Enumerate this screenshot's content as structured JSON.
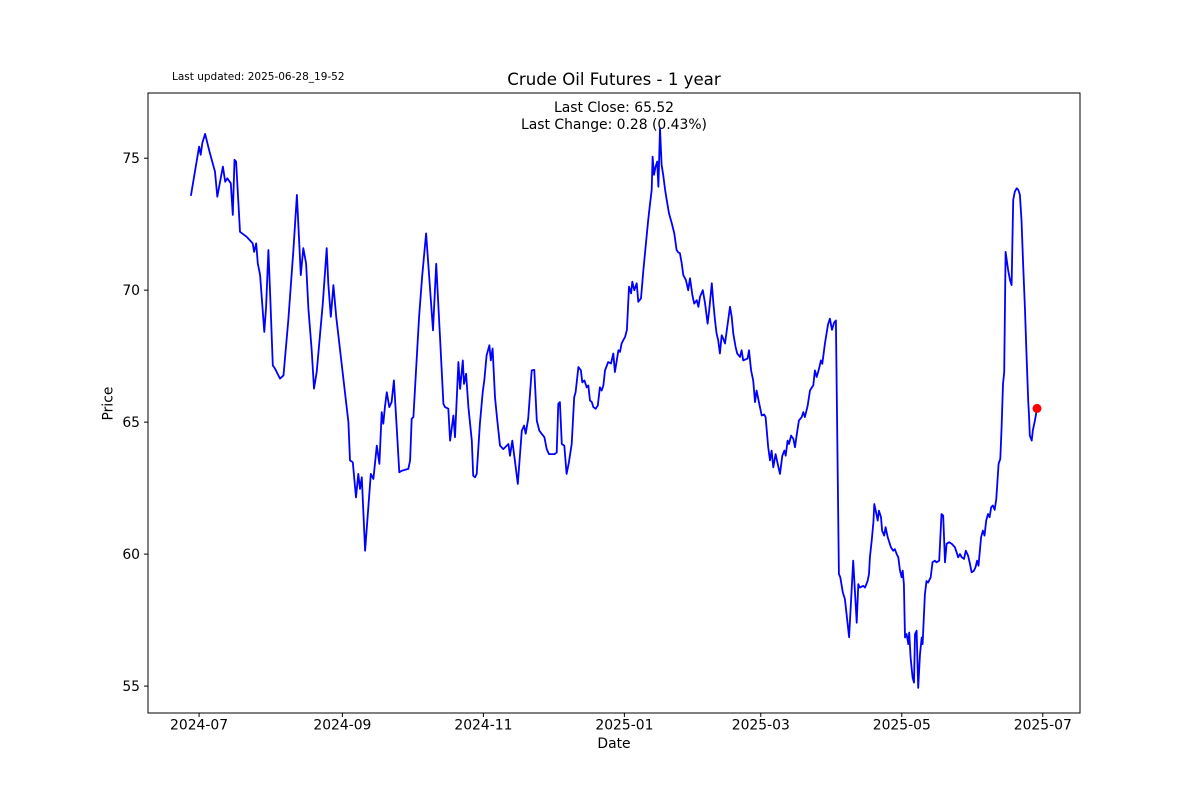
{
  "chart_data": {
    "type": "line",
    "title": "Crude Oil Futures - 1 year",
    "xlabel": "Date",
    "ylabel": "Price",
    "annotations": {
      "last_updated": "Last updated: 2025-06-28_19-52",
      "last_close": "Last Close: 65.52",
      "last_change": "Last Change: 0.28 (0.43%)"
    },
    "last_close_value": 65.52,
    "last_change_value": 0.28,
    "last_change_pct": 0.43,
    "line_color": "#0000ff",
    "marker_color": "#ff0000",
    "grid": false,
    "legend": "none",
    "x_axis": {
      "unit": "days since 2024-07-01",
      "lim": [
        -22.1,
        381.1
      ],
      "ticks": [
        {
          "day": 0,
          "label": "2024-07"
        },
        {
          "day": 62,
          "label": "2024-09"
        },
        {
          "day": 123,
          "label": "2024-11"
        },
        {
          "day": 184,
          "label": "2025-01"
        },
        {
          "day": 243,
          "label": "2025-03"
        },
        {
          "day": 304,
          "label": "2025-05"
        },
        {
          "day": 365,
          "label": "2025-07"
        }
      ]
    },
    "y_axis": {
      "lim": [
        53.98,
        77.47
      ],
      "ticks": [
        55,
        60,
        65,
        70,
        75
      ]
    },
    "last_point": {
      "day": 362.5,
      "price": 65.52
    },
    "points": [
      [
        -3.5,
        73.6
      ],
      [
        0,
        75.44
      ],
      [
        0.7,
        75.13
      ],
      [
        1.4,
        75.57
      ],
      [
        2.6,
        75.92
      ],
      [
        4.5,
        75.25
      ],
      [
        6.9,
        74.49
      ],
      [
        7.9,
        73.54
      ],
      [
        10.3,
        74.68
      ],
      [
        11.3,
        74.11
      ],
      [
        12.2,
        74.24
      ],
      [
        13.7,
        74.05
      ],
      [
        14.6,
        72.85
      ],
      [
        15.3,
        74.94
      ],
      [
        16,
        74.87
      ],
      [
        17.7,
        72.21
      ],
      [
        20.6,
        72.02
      ],
      [
        23.2,
        71.77
      ],
      [
        23.8,
        71.45
      ],
      [
        24.7,
        71.77
      ],
      [
        25.4,
        71.01
      ],
      [
        26.4,
        70.57
      ],
      [
        28.2,
        68.42
      ],
      [
        29,
        69.37
      ],
      [
        30,
        71.52
      ],
      [
        30.7,
        70
      ],
      [
        31.9,
        67.15
      ],
      [
        32.9,
        67.02
      ],
      [
        35,
        66.65
      ],
      [
        36.5,
        66.77
      ],
      [
        38.6,
        68.86
      ],
      [
        40.8,
        71.52
      ],
      [
        42.3,
        73.61
      ],
      [
        44,
        70.57
      ],
      [
        45.1,
        71.59
      ],
      [
        46.3,
        71.01
      ],
      [
        47.3,
        69.3
      ],
      [
        48.7,
        67.72
      ],
      [
        49.7,
        66.27
      ],
      [
        50.9,
        66.9
      ],
      [
        53.5,
        69.5
      ],
      [
        55.2,
        71.59
      ],
      [
        55.9,
        70.25
      ],
      [
        57,
        68.99
      ],
      [
        58.1,
        70.19
      ],
      [
        59.3,
        69
      ],
      [
        61,
        67.72
      ],
      [
        64.6,
        65
      ],
      [
        65.3,
        63.55
      ],
      [
        66.5,
        63.48
      ],
      [
        67.9,
        62.15
      ],
      [
        68.9,
        63.04
      ],
      [
        69.6,
        62.47
      ],
      [
        70.4,
        62.91
      ],
      [
        71.8,
        60.13
      ],
      [
        74.3,
        63.04
      ],
      [
        75.4,
        62.85
      ],
      [
        76.9,
        64.11
      ],
      [
        78,
        63.42
      ],
      [
        79,
        65.38
      ],
      [
        79.7,
        64.94
      ],
      [
        80.4,
        65.57
      ],
      [
        81.2,
        66.13
      ],
      [
        82.3,
        65.57
      ],
      [
        83.3,
        65.76
      ],
      [
        84.3,
        66.58
      ],
      [
        85.5,
        64.81
      ],
      [
        86.6,
        63.1
      ],
      [
        87.7,
        63.16
      ],
      [
        90.5,
        63.23
      ],
      [
        91.3,
        63.55
      ],
      [
        92,
        65.13
      ],
      [
        92.7,
        65.19
      ],
      [
        93.9,
        67
      ],
      [
        95.2,
        69
      ],
      [
        96.5,
        70.5
      ],
      [
        98.2,
        72.15
      ],
      [
        101.2,
        68.48
      ],
      [
        102.6,
        71
      ],
      [
        104.2,
        68.3
      ],
      [
        105.7,
        65.7
      ],
      [
        106.4,
        65.57
      ],
      [
        107.8,
        65.51
      ],
      [
        108.6,
        64.3
      ],
      [
        110,
        65.25
      ],
      [
        110.7,
        64.43
      ],
      [
        112.2,
        67.28
      ],
      [
        112.9,
        66.26
      ],
      [
        114.1,
        67.34
      ],
      [
        114.6,
        66.45
      ],
      [
        115.5,
        66.83
      ],
      [
        116.5,
        65.57
      ],
      [
        118,
        64.3
      ],
      [
        118.6,
        62.97
      ],
      [
        119.4,
        62.91
      ],
      [
        120.1,
        63.04
      ],
      [
        121.5,
        64.94
      ],
      [
        122.7,
        66.13
      ],
      [
        123.4,
        66.58
      ],
      [
        124.4,
        67.53
      ],
      [
        125.6,
        67.91
      ],
      [
        126.2,
        67.34
      ],
      [
        127,
        67.79
      ],
      [
        128,
        65.94
      ],
      [
        129,
        65.06
      ],
      [
        130.2,
        64.11
      ],
      [
        131.6,
        63.98
      ],
      [
        133.8,
        64.17
      ],
      [
        134.5,
        63.73
      ],
      [
        135.5,
        64.3
      ],
      [
        136.7,
        63.48
      ],
      [
        137.9,
        62.66
      ],
      [
        139.6,
        64.68
      ],
      [
        140.6,
        64.87
      ],
      [
        141.3,
        64.56
      ],
      [
        142.4,
        65.13
      ],
      [
        143.9,
        66.96
      ],
      [
        145,
        66.98
      ],
      [
        146.1,
        65.06
      ],
      [
        147.2,
        64.68
      ],
      [
        148.2,
        64.56
      ],
      [
        149.4,
        64.43
      ],
      [
        150.4,
        63.98
      ],
      [
        151.4,
        63.79
      ],
      [
        153.7,
        63.79
      ],
      [
        154.7,
        63.85
      ],
      [
        155.4,
        65.7
      ],
      [
        156.1,
        65.76
      ],
      [
        156.9,
        64.17
      ],
      [
        158,
        64.11
      ],
      [
        159,
        63.04
      ],
      [
        160,
        63.48
      ],
      [
        161.2,
        64.17
      ],
      [
        162.3,
        65.94
      ],
      [
        162.9,
        66.13
      ],
      [
        164.1,
        67.09
      ],
      [
        165.2,
        66.96
      ],
      [
        165.8,
        66.51
      ],
      [
        166.7,
        66.58
      ],
      [
        167.7,
        66.32
      ],
      [
        168.4,
        66.39
      ],
      [
        169.1,
        65.82
      ],
      [
        169.9,
        65.76
      ],
      [
        170.6,
        65.57
      ],
      [
        171.6,
        65.51
      ],
      [
        172.5,
        65.63
      ],
      [
        173.4,
        66.32
      ],
      [
        174.2,
        66.2
      ],
      [
        174.9,
        66.39
      ],
      [
        175.6,
        66.96
      ],
      [
        177,
        67.28
      ],
      [
        178.2,
        67.22
      ],
      [
        179.2,
        67.6
      ],
      [
        179.9,
        66.9
      ],
      [
        181.4,
        67.72
      ],
      [
        182.1,
        67.66
      ],
      [
        182.8,
        67.98
      ],
      [
        183.5,
        68.1
      ],
      [
        184.3,
        68.23
      ],
      [
        185.1,
        68.5
      ],
      [
        186,
        70.13
      ],
      [
        186.9,
        69.88
      ],
      [
        187.4,
        70.32
      ],
      [
        188.3,
        70
      ],
      [
        189.3,
        70.26
      ],
      [
        190,
        69.56
      ],
      [
        191.2,
        69.69
      ],
      [
        192.2,
        70.77
      ],
      [
        192.9,
        71.4
      ],
      [
        193.6,
        72.03
      ],
      [
        194.3,
        72.66
      ],
      [
        195.1,
        73.3
      ],
      [
        195.8,
        73.8
      ],
      [
        196.2,
        75.06
      ],
      [
        196.8,
        74.37
      ],
      [
        197.5,
        74.68
      ],
      [
        198.2,
        74.87
      ],
      [
        198.7,
        73.92
      ],
      [
        199.4,
        76.14
      ],
      [
        200.1,
        74.75
      ],
      [
        200.8,
        74.37
      ],
      [
        201.6,
        73.8
      ],
      [
        202.3,
        73.42
      ],
      [
        203.3,
        72.91
      ],
      [
        204.5,
        72.53
      ],
      [
        205.6,
        72.15
      ],
      [
        206.6,
        71.52
      ],
      [
        207.3,
        71.43
      ],
      [
        208,
        71.4
      ],
      [
        208.8,
        71.02
      ],
      [
        209.5,
        70.57
      ],
      [
        210.6,
        70.38
      ],
      [
        211.6,
        70
      ],
      [
        212.4,
        70.45
      ],
      [
        213.4,
        69.81
      ],
      [
        214.2,
        69.49
      ],
      [
        215.3,
        69.62
      ],
      [
        216,
        69.37
      ],
      [
        216.7,
        69.75
      ],
      [
        217.9,
        70
      ],
      [
        218.9,
        69.49
      ],
      [
        220,
        68.73
      ],
      [
        220.7,
        69.24
      ],
      [
        221.8,
        70.26
      ],
      [
        222.5,
        69.49
      ],
      [
        223.2,
        68.86
      ],
      [
        223.9,
        68.35
      ],
      [
        224.6,
        68.1
      ],
      [
        225.3,
        67.6
      ],
      [
        226.1,
        68.29
      ],
      [
        226.8,
        68.16
      ],
      [
        227.5,
        67.98
      ],
      [
        228.7,
        68.73
      ],
      [
        229.7,
        69.37
      ],
      [
        230.4,
        68.99
      ],
      [
        231.1,
        68.35
      ],
      [
        232.1,
        67.85
      ],
      [
        232.8,
        67.6
      ],
      [
        234,
        67.47
      ],
      [
        234.7,
        67.72
      ],
      [
        235.4,
        67.34
      ],
      [
        237.3,
        67.41
      ],
      [
        237.9,
        67.72
      ],
      [
        238.8,
        66.96
      ],
      [
        239.7,
        66.58
      ],
      [
        240.5,
        65.76
      ],
      [
        241.2,
        66.2
      ],
      [
        242.2,
        65.76
      ],
      [
        243.4,
        65.25
      ],
      [
        244.5,
        65.29
      ],
      [
        245.1,
        65.19
      ],
      [
        246.2,
        64.05
      ],
      [
        247,
        63.55
      ],
      [
        247.7,
        63.92
      ],
      [
        248.4,
        63.29
      ],
      [
        249.4,
        63.79
      ],
      [
        250.3,
        63.42
      ],
      [
        251.3,
        63.04
      ],
      [
        252.3,
        63.73
      ],
      [
        253.2,
        63.92
      ],
      [
        253.8,
        63.73
      ],
      [
        254.6,
        64.3
      ],
      [
        255.2,
        64.17
      ],
      [
        256.1,
        64.49
      ],
      [
        257.1,
        64.36
      ],
      [
        257.8,
        64.05
      ],
      [
        258.5,
        64.49
      ],
      [
        259.5,
        65.06
      ],
      [
        260.7,
        65.19
      ],
      [
        261.4,
        65.38
      ],
      [
        262.1,
        65.19
      ],
      [
        263.3,
        65.63
      ],
      [
        264.3,
        66.2
      ],
      [
        265,
        66.3
      ],
      [
        265.7,
        66.39
      ],
      [
        266.4,
        66.96
      ],
      [
        267.2,
        66.71
      ],
      [
        268.2,
        67.02
      ],
      [
        269,
        67.34
      ],
      [
        269.6,
        67.21
      ],
      [
        270.8,
        68
      ],
      [
        272.1,
        68.7
      ],
      [
        272.9,
        68.92
      ],
      [
        273.8,
        68.5
      ],
      [
        274.7,
        68.77
      ],
      [
        275.5,
        68.85
      ],
      [
        276.8,
        59.25
      ],
      [
        277.4,
        59.12
      ],
      [
        278.5,
        58.55
      ],
      [
        279.4,
        58.3
      ],
      [
        281.2,
        56.85
      ],
      [
        283,
        59.75
      ],
      [
        284.5,
        57.4
      ],
      [
        285.2,
        58.86
      ],
      [
        285.9,
        58.73
      ],
      [
        287.3,
        58.8
      ],
      [
        288.1,
        58.73
      ],
      [
        289.2,
        58.98
      ],
      [
        289.8,
        59.25
      ],
      [
        290.2,
        59.88
      ],
      [
        291,
        60.51
      ],
      [
        291.7,
        61.21
      ],
      [
        292.1,
        61.9
      ],
      [
        292.7,
        61.65
      ],
      [
        293.6,
        61.27
      ],
      [
        294.1,
        61.65
      ],
      [
        295,
        61.4
      ],
      [
        295.5,
        60.89
      ],
      [
        296.4,
        60.7
      ],
      [
        297,
        61.02
      ],
      [
        297.9,
        60.64
      ],
      [
        298.4,
        60.51
      ],
      [
        299.3,
        60.26
      ],
      [
        300.3,
        60.13
      ],
      [
        301,
        60.19
      ],
      [
        301.8,
        60
      ],
      [
        302.5,
        59.88
      ],
      [
        303.2,
        59.4
      ],
      [
        303.9,
        59.12
      ],
      [
        304.4,
        59.37
      ],
      [
        304.9,
        58.86
      ],
      [
        305.4,
        56.84
      ],
      [
        306.1,
        56.97
      ],
      [
        306.8,
        56.59
      ],
      [
        307.2,
        57.03
      ],
      [
        307.8,
        56.08
      ],
      [
        308.7,
        55.32
      ],
      [
        309.3,
        55.13
      ],
      [
        309.7,
        56.97
      ],
      [
        310.4,
        57.1
      ],
      [
        311.1,
        54.93
      ],
      [
        311.9,
        56.21
      ],
      [
        312.6,
        56.84
      ],
      [
        313,
        56.59
      ],
      [
        314,
        58.48
      ],
      [
        314.7,
        58.98
      ],
      [
        315.4,
        58.92
      ],
      [
        316.5,
        59.12
      ],
      [
        317.3,
        59.69
      ],
      [
        318.3,
        59.75
      ],
      [
        319,
        59.69
      ],
      [
        320.2,
        59.75
      ],
      [
        321.2,
        61.52
      ],
      [
        321.9,
        61.46
      ],
      [
        322.7,
        59.69
      ],
      [
        323.4,
        60.39
      ],
      [
        324.5,
        60.45
      ],
      [
        325.6,
        60.39
      ],
      [
        327,
        60.26
      ],
      [
        327.7,
        60.07
      ],
      [
        328.4,
        59.88
      ],
      [
        329.2,
        60
      ],
      [
        329.9,
        59.88
      ],
      [
        330.9,
        59.82
      ],
      [
        331.7,
        60.13
      ],
      [
        332.7,
        59.94
      ],
      [
        333.5,
        59.62
      ],
      [
        334.2,
        59.31
      ],
      [
        335.2,
        59.37
      ],
      [
        335.9,
        59.5
      ],
      [
        336.6,
        59.75
      ],
      [
        337.2,
        59.56
      ],
      [
        338.3,
        60.64
      ],
      [
        339.1,
        60.89
      ],
      [
        339.8,
        60.7
      ],
      [
        340.5,
        61.27
      ],
      [
        341.3,
        61.52
      ],
      [
        342,
        61.4
      ],
      [
        342.7,
        61.78
      ],
      [
        343.4,
        61.84
      ],
      [
        344.2,
        61.68
      ],
      [
        344.9,
        62.1
      ],
      [
        345.9,
        63.42
      ],
      [
        346.6,
        63.61
      ],
      [
        347.2,
        64.81
      ],
      [
        347.8,
        66.44
      ],
      [
        348.3,
        66.9
      ],
      [
        348.9,
        71.45
      ],
      [
        350,
        70.77
      ],
      [
        350.8,
        70.38
      ],
      [
        351.5,
        70.19
      ],
      [
        352.2,
        73.42
      ],
      [
        352.9,
        73.73
      ],
      [
        353.7,
        73.86
      ],
      [
        354.4,
        73.8
      ],
      [
        355.1,
        73.61
      ],
      [
        355.8,
        72.66
      ],
      [
        356.5,
        71.02
      ],
      [
        357.3,
        69.24
      ],
      [
        358,
        67.47
      ],
      [
        358.7,
        65.82
      ],
      [
        359.1,
        65.19
      ],
      [
        359.4,
        64.49
      ],
      [
        360.2,
        64.3
      ],
      [
        360.7,
        64.68
      ],
      [
        361.6,
        65.06
      ],
      [
        362.5,
        65.52
      ]
    ]
  }
}
